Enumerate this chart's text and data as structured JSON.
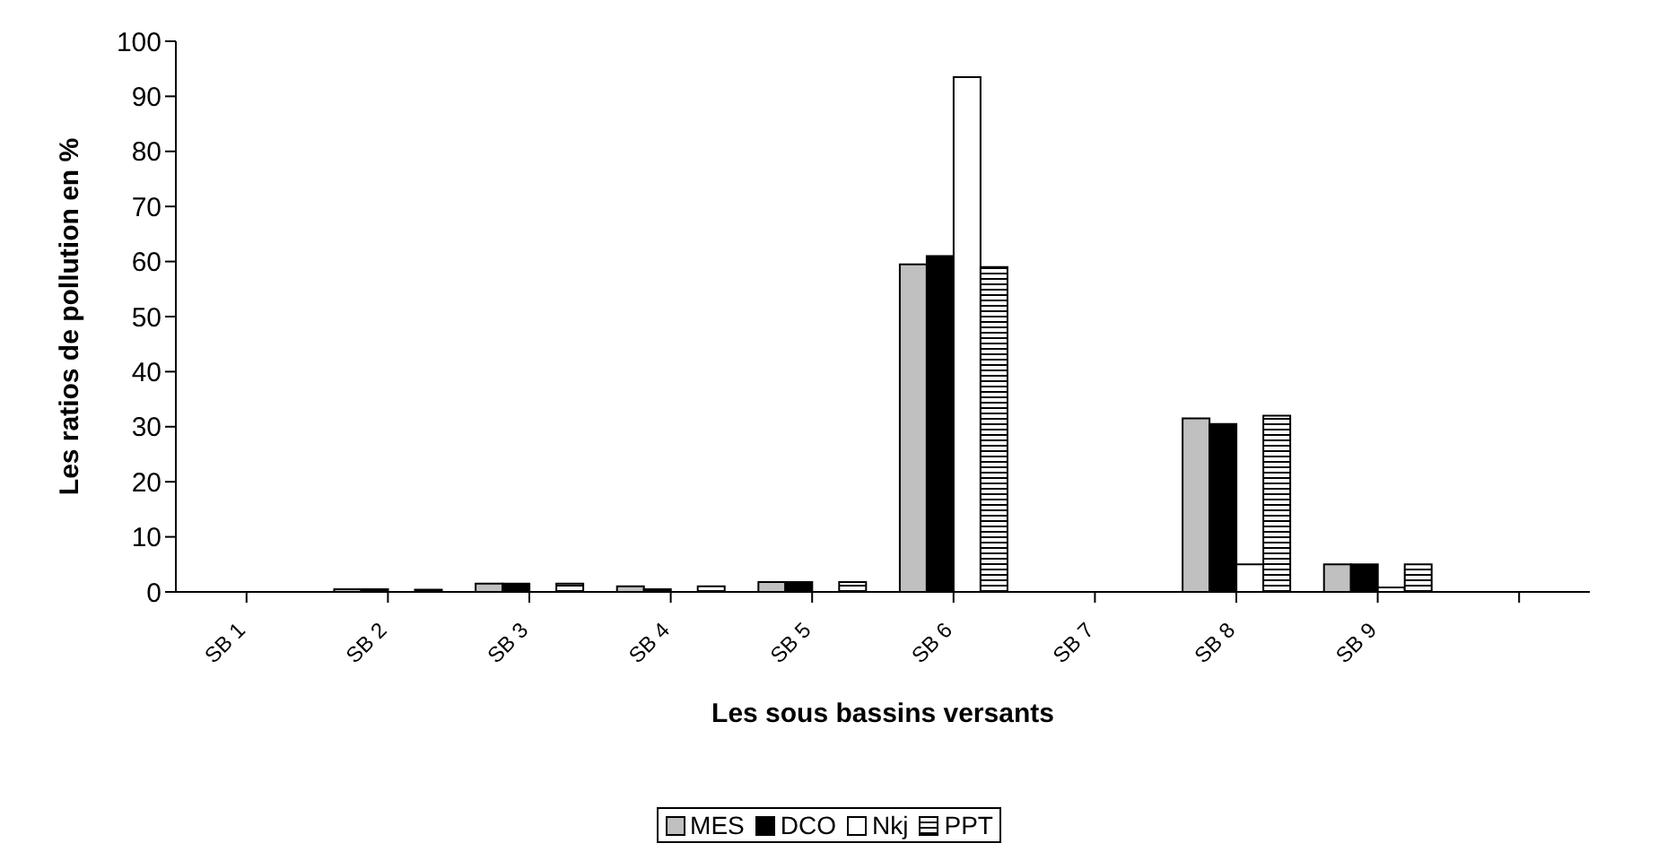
{
  "chart_data": {
    "type": "bar",
    "xlabel": "Les sous bassins versants",
    "ylabel": "Les ratios de pollution en %",
    "categories": [
      "SB 1",
      "SB 2",
      "SB 3",
      "SB 4",
      "SB 5",
      "SB 6",
      "SB 7",
      "SB 8",
      "SB 9",
      null
    ],
    "series": [
      {
        "name": "MES",
        "color": "#c0c0c0",
        "values": [
          0,
          0.5,
          1.5,
          1,
          1.8,
          59.5,
          0,
          31.5,
          5,
          null
        ]
      },
      {
        "name": "DCO",
        "color": "#000000",
        "values": [
          0,
          0.5,
          1.5,
          0.5,
          1.8,
          61,
          0,
          30.5,
          5,
          null
        ]
      },
      {
        "name": "Nkj",
        "color": "#ffffff",
        "values": [
          0,
          null,
          null,
          null,
          null,
          93.5,
          0,
          5,
          0.8,
          null
        ]
      },
      {
        "name": "PPT",
        "color": "#000000",
        "values": [
          0,
          0.4,
          1.5,
          1,
          1.8,
          59,
          0,
          32,
          5,
          null
        ]
      }
    ],
    "ylim": [
      0,
      100
    ],
    "yticks": [
      0,
      10,
      20,
      30,
      40,
      50,
      60,
      70,
      80,
      90,
      100
    ],
    "grid": false,
    "legend": "bottom"
  }
}
